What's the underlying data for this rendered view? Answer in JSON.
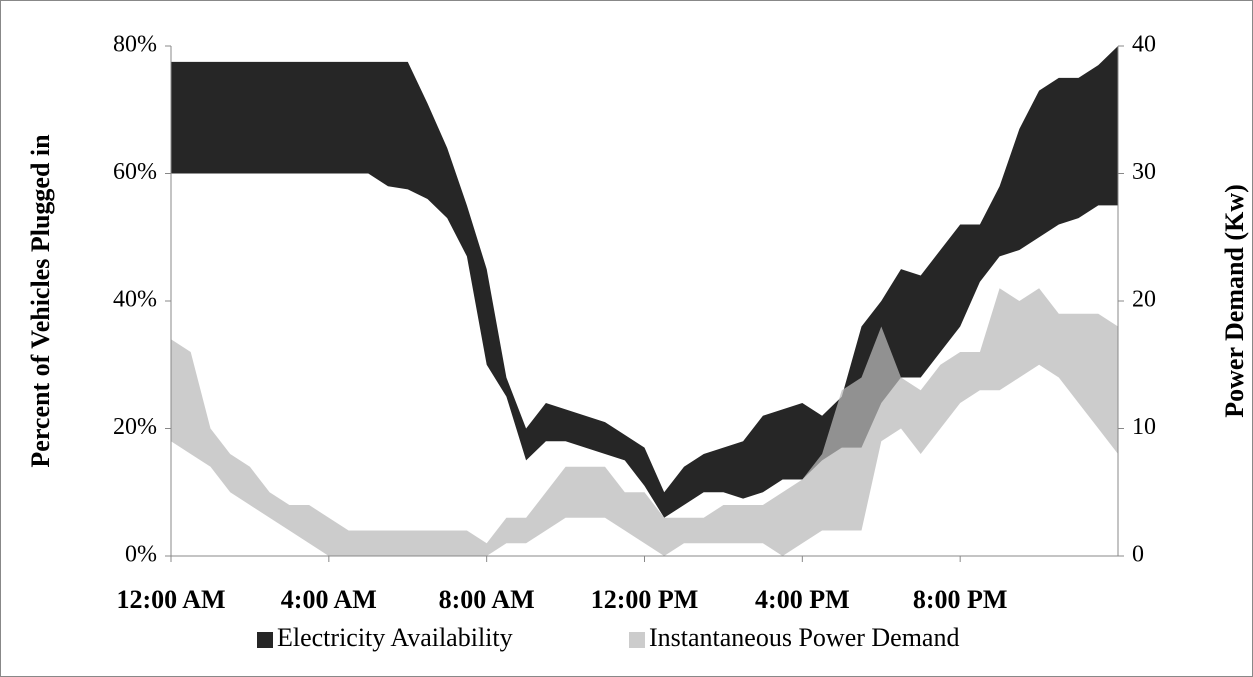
{
  "chart_data": {
    "type": "band",
    "x": [
      0,
      0.5,
      1,
      1.5,
      2,
      2.5,
      3,
      3.5,
      4,
      4.5,
      5,
      5.5,
      6,
      6.5,
      7,
      7.5,
      8,
      8.5,
      9,
      9.5,
      10,
      10.5,
      11,
      11.5,
      12,
      12.5,
      13,
      13.5,
      14,
      14.5,
      15,
      15.5,
      16,
      16.5,
      17,
      17.5,
      18,
      18.5,
      19,
      19.5,
      20,
      20.5,
      21,
      21.5,
      22,
      22.5,
      23,
      23.5,
      24
    ],
    "xlim": [
      0,
      24
    ],
    "xticks": [
      {
        "value": 0,
        "label": "12:00 AM"
      },
      {
        "value": 4,
        "label": "4:00 AM"
      },
      {
        "value": 8,
        "label": "8:00 AM"
      },
      {
        "value": 12,
        "label": "12:00 PM"
      },
      {
        "value": 16,
        "label": "4:00 PM"
      },
      {
        "value": 20,
        "label": "8:00 PM"
      }
    ],
    "ylabel": "Percent of Vehicles Plugged in",
    "ylim": [
      0,
      80
    ],
    "yticks": [
      {
        "value": 0,
        "label": "0%"
      },
      {
        "value": 20,
        "label": "20%"
      },
      {
        "value": 40,
        "label": "40%"
      },
      {
        "value": 60,
        "label": "60%"
      },
      {
        "value": 80,
        "label": "80%"
      }
    ],
    "y2label": "Power Demand (Kw)",
    "y2lim": [
      0,
      40
    ],
    "y2ticks": [
      0,
      10,
      20,
      30,
      40
    ],
    "legend": "bottom",
    "series": [
      {
        "name": "Electricity Availability",
        "color": "#262626",
        "opacity": 1,
        "upper": [
          77.5,
          77.5,
          77.5,
          77.5,
          77.5,
          77.5,
          77.5,
          77.5,
          77.5,
          77.5,
          77.5,
          77.5,
          77.5,
          71,
          64,
          55,
          45,
          28,
          20,
          24,
          23,
          22,
          21,
          19,
          17,
          10,
          14,
          16,
          17,
          18,
          22,
          23,
          24,
          22,
          25,
          36,
          40,
          45,
          44,
          48,
          52,
          52,
          58,
          67,
          73,
          75,
          75,
          77,
          80
        ],
        "lower": [
          60,
          60,
          60,
          60,
          60,
          60,
          60,
          60,
          60,
          60,
          60,
          58,
          57.5,
          56,
          53,
          47,
          30,
          25,
          15,
          18,
          18,
          17,
          16,
          15,
          11,
          6,
          8,
          10,
          10,
          9,
          10,
          12,
          12,
          15,
          17,
          17,
          24,
          28,
          28,
          32,
          36,
          43,
          47,
          48,
          50,
          52,
          53,
          55,
          55
        ]
      },
      {
        "name": "Instantaneous Power Demand",
        "color": "#b9b9b9",
        "opacity": 0.73,
        "axis": "y2",
        "upper": [
          17,
          16,
          10,
          8,
          7,
          5,
          4,
          4,
          3,
          2,
          2,
          2,
          2,
          2,
          2,
          2,
          1,
          3,
          3,
          5,
          7,
          7,
          7,
          5,
          5,
          3,
          3,
          3,
          4,
          4,
          4,
          5,
          6,
          8,
          13,
          14,
          18,
          14,
          13,
          15,
          16,
          16,
          21,
          20,
          21,
          19,
          19,
          19,
          18
        ],
        "lower": [
          9,
          8,
          7,
          5,
          4,
          3,
          2,
          1,
          0,
          0,
          0,
          0,
          0,
          0,
          0,
          0,
          0,
          1,
          1,
          2,
          3,
          3,
          3,
          2,
          1,
          0,
          1,
          1,
          1,
          1,
          1,
          0,
          1,
          2,
          2,
          2,
          9,
          10,
          8,
          10,
          12,
          13,
          13,
          14,
          15,
          14,
          12,
          10,
          8
        ]
      }
    ]
  }
}
